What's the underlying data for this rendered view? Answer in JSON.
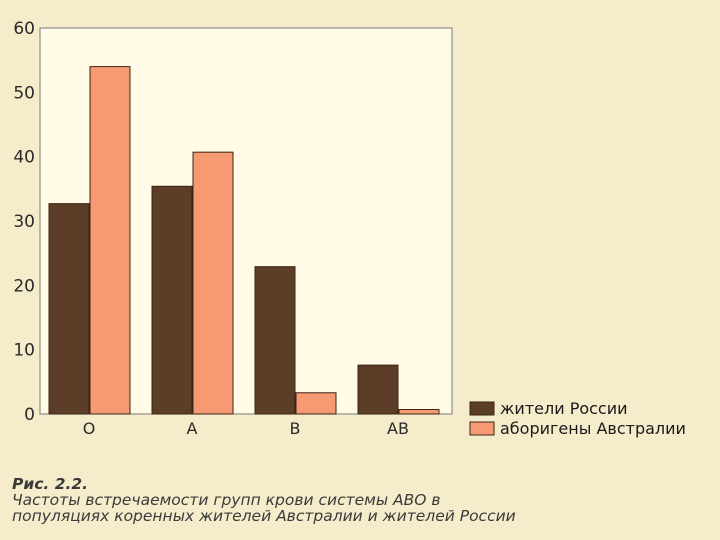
{
  "chart_data": {
    "type": "bar",
    "categories": [
      "O",
      "A",
      "B",
      "AB"
    ],
    "series": [
      {
        "name": "жители России",
        "values": [
          32.7,
          35.4,
          22.9,
          7.6
        ],
        "color": "#5c3d27"
      },
      {
        "name": "аборигены Австралии",
        "values": [
          54.0,
          40.7,
          3.3,
          0.7
        ],
        "color": "#f59a72"
      }
    ],
    "ylim": [
      0,
      60
    ],
    "yticks": [
      "0",
      "10",
      "20",
      "30",
      "40",
      "50",
      "60"
    ],
    "grid": false,
    "legend_position": "bottom-right"
  },
  "caption": {
    "figure": "Рис. 2.2.",
    "line1": "Частоты встречаемости групп крови системы АВО в",
    "line2": "популяциях коренных жителей Австралии и жителей России"
  },
  "colors": {
    "background": "#f5eccb",
    "plot_background": "#fffbe6",
    "series1": "#5c3d27",
    "series2": "#f59a72"
  }
}
